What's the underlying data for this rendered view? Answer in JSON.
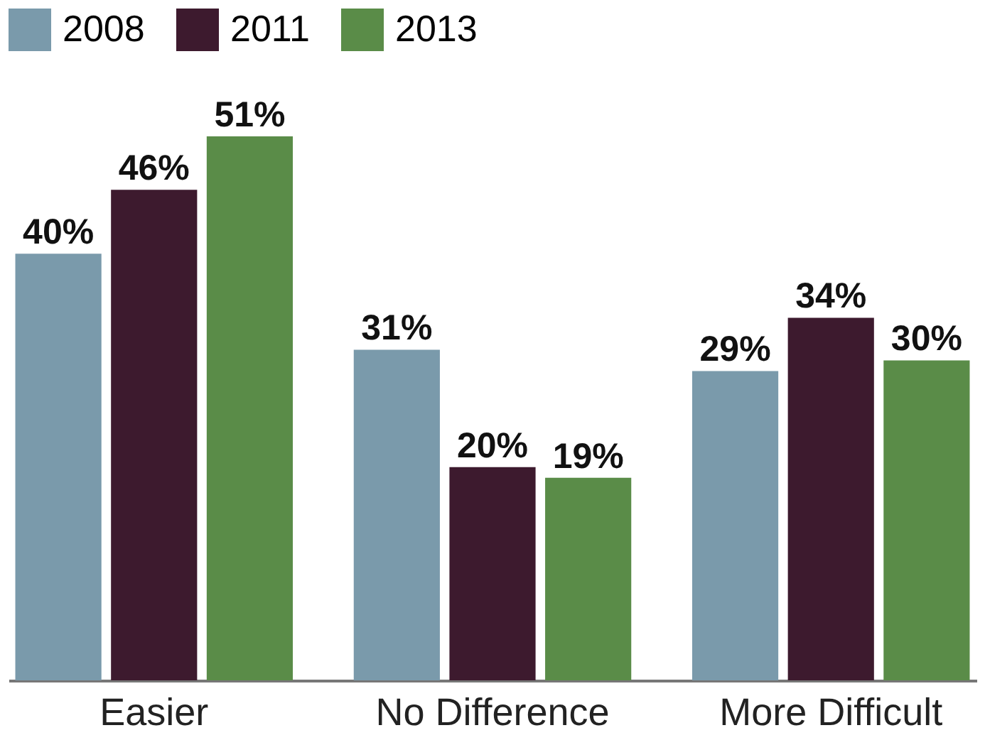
{
  "chart_data": {
    "type": "bar",
    "categories": [
      "Easier",
      "No Difference",
      "More Difficult"
    ],
    "series": [
      {
        "name": "2008",
        "color": "#7a9aab",
        "values": [
          40,
          31,
          29
        ],
        "value_labels": [
          "40%",
          "31%",
          "29%"
        ]
      },
      {
        "name": "2011",
        "color": "#3d1a2e",
        "values": [
          46,
          20,
          34
        ],
        "value_labels": [
          "46%",
          "20%",
          "34%"
        ]
      },
      {
        "name": "2013",
        "color": "#5a8c48",
        "values": [
          51,
          19,
          30
        ],
        "value_labels": [
          "51%",
          "19%",
          "30%"
        ]
      }
    ],
    "legend": "top left",
    "grid": false
  }
}
